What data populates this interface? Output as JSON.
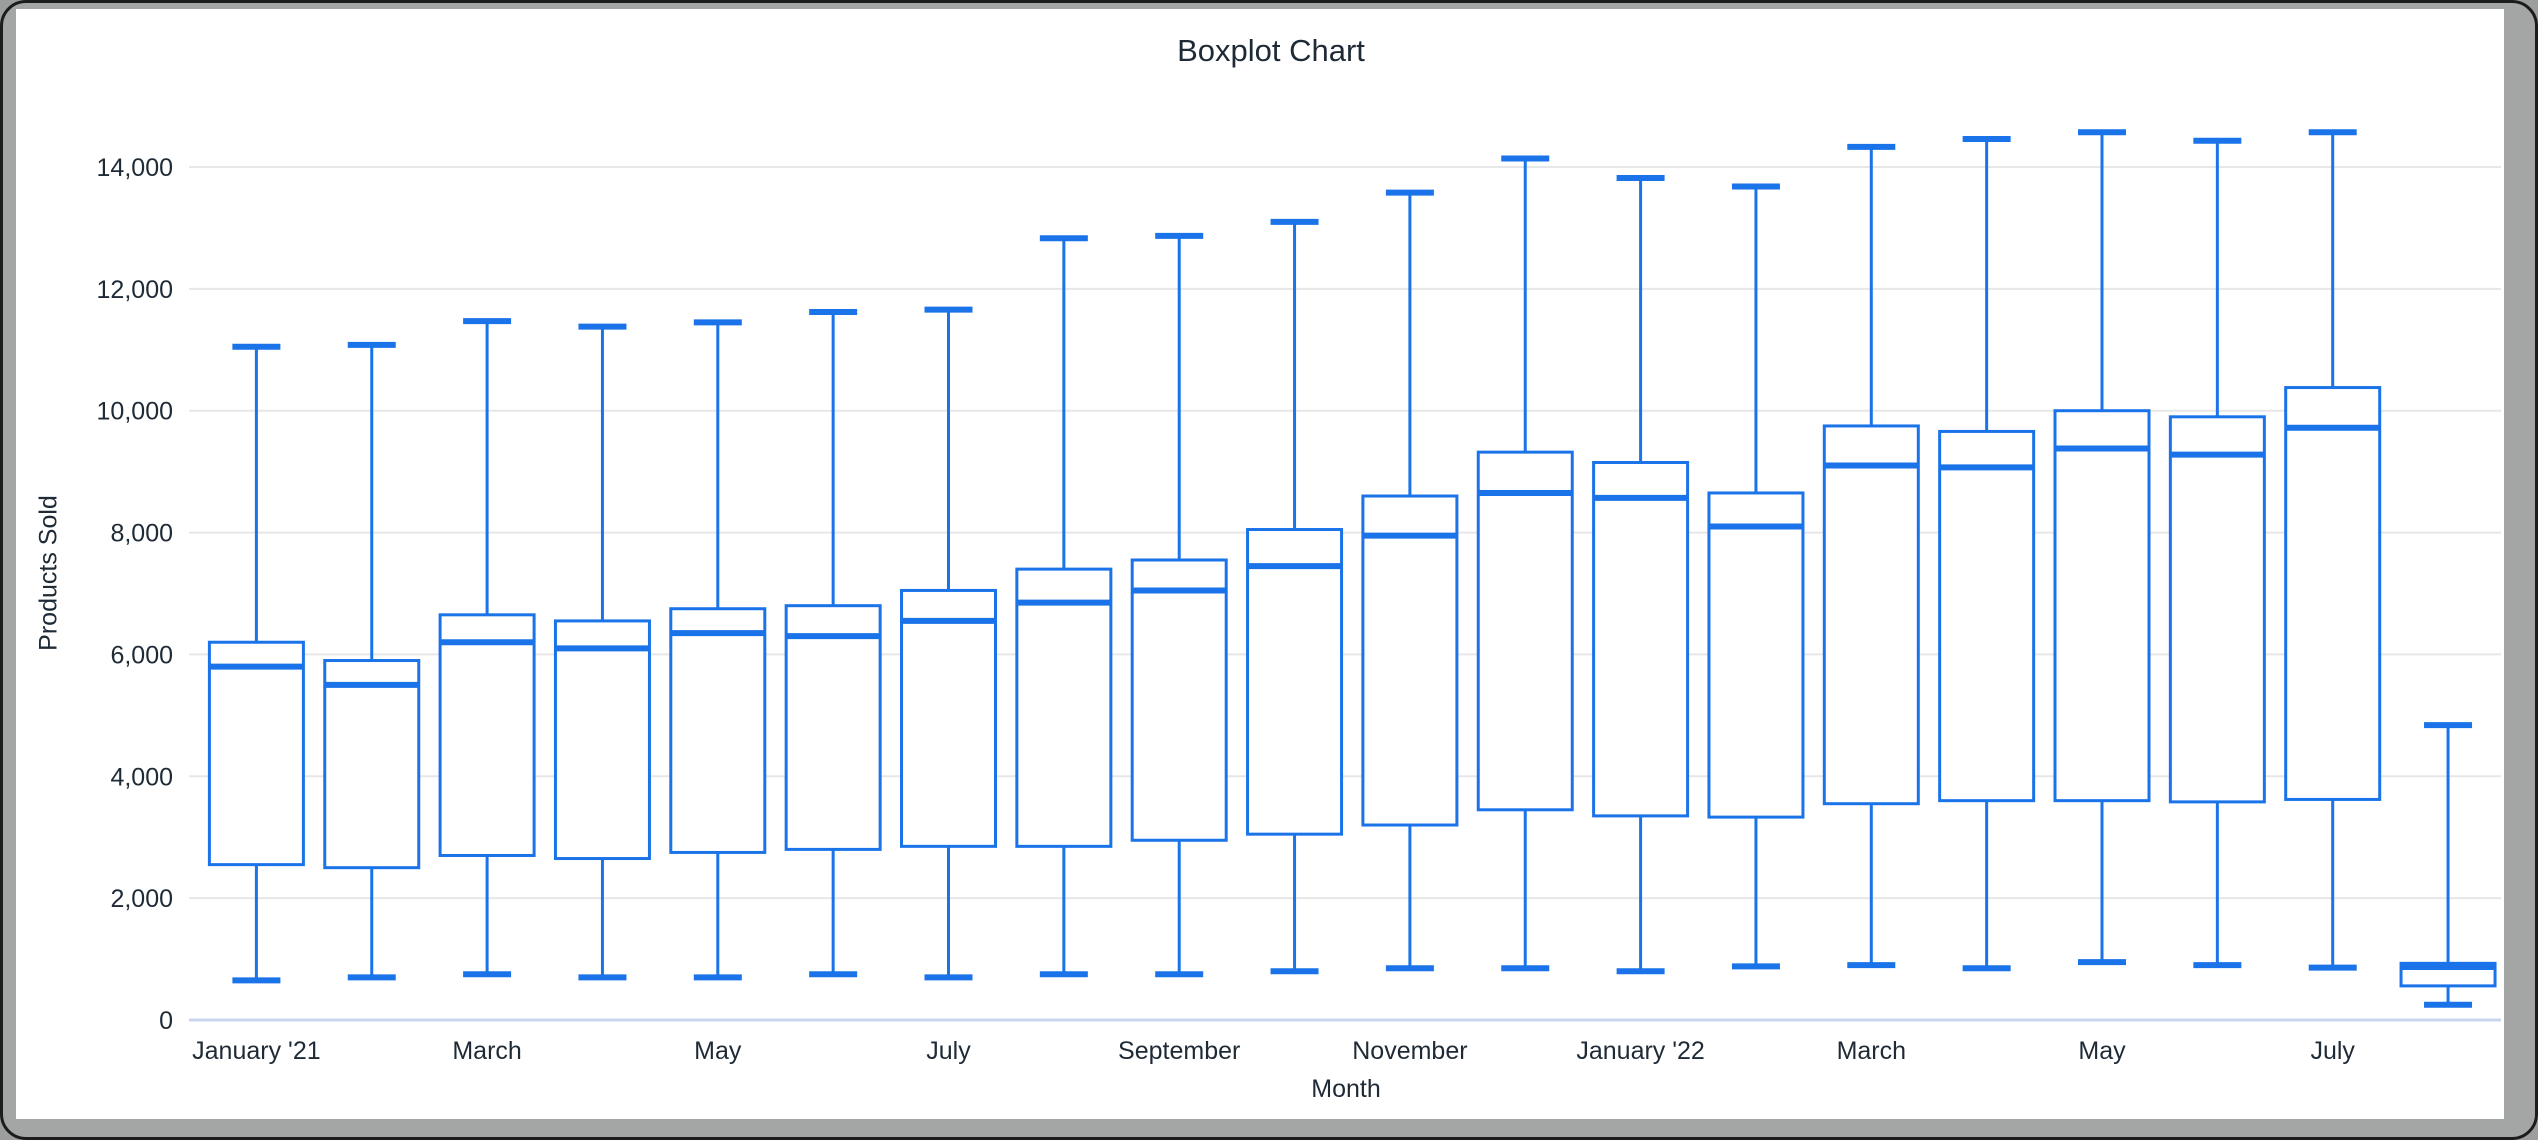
{
  "window": {
    "frame_color": "#a3a6a5",
    "border_color": "#1c1c1c",
    "canvas_color": "#ffffff"
  },
  "chart": {
    "title": "Boxplot Chart",
    "x_axis_title": "Month",
    "y_axis_title": "Products Sold",
    "accent_color": "#1a73e8",
    "gridline_color": "#e7e7e7",
    "baseline_color": "#c9d5ec",
    "text_color": "#1e2a36",
    "y_ticks": [
      "0",
      "2,000",
      "4,000",
      "6,000",
      "8,000",
      "10,000",
      "12,000",
      "14,000"
    ]
  },
  "chart_data": {
    "type": "boxplot",
    "title": "Boxplot Chart",
    "xlabel": "Month",
    "ylabel": "Products Sold",
    "ylim": [
      0,
      15400
    ],
    "y_tick_interval": 2000,
    "grid": true,
    "legend": "none",
    "x_tick_labels": [
      "January '21",
      "March",
      "May",
      "July",
      "September",
      "November",
      "January '22",
      "March",
      "May",
      "July"
    ],
    "series": [
      {
        "name": "Products Sold",
        "boxes": [
          {
            "label": "January '21",
            "min": 650,
            "q1": 2550,
            "median": 5800,
            "q3": 6200,
            "max": 11050
          },
          {
            "label": "",
            "min": 700,
            "q1": 2500,
            "median": 5500,
            "q3": 5900,
            "max": 11080
          },
          {
            "label": "March",
            "min": 750,
            "q1": 2700,
            "median": 6200,
            "q3": 6650,
            "max": 11470
          },
          {
            "label": "",
            "min": 700,
            "q1": 2650,
            "median": 6100,
            "q3": 6550,
            "max": 11380
          },
          {
            "label": "May",
            "min": 700,
            "q1": 2750,
            "median": 6350,
            "q3": 6750,
            "max": 11450
          },
          {
            "label": "",
            "min": 750,
            "q1": 2800,
            "median": 6300,
            "q3": 6800,
            "max": 11620
          },
          {
            "label": "July",
            "min": 700,
            "q1": 2850,
            "median": 6550,
            "q3": 7050,
            "max": 11660
          },
          {
            "label": "",
            "min": 750,
            "q1": 2850,
            "median": 6850,
            "q3": 7400,
            "max": 12830
          },
          {
            "label": "September",
            "min": 750,
            "q1": 2950,
            "median": 7050,
            "q3": 7550,
            "max": 12870
          },
          {
            "label": "",
            "min": 800,
            "q1": 3050,
            "median": 7450,
            "q3": 8050,
            "max": 13100
          },
          {
            "label": "November",
            "min": 850,
            "q1": 3200,
            "median": 7950,
            "q3": 8600,
            "max": 13580
          },
          {
            "label": "",
            "min": 850,
            "q1": 3450,
            "median": 8650,
            "q3": 9320,
            "max": 14140
          },
          {
            "label": "January '22",
            "min": 800,
            "q1": 3350,
            "median": 8570,
            "q3": 9150,
            "max": 13820
          },
          {
            "label": "",
            "min": 880,
            "q1": 3330,
            "median": 8100,
            "q3": 8650,
            "max": 13680
          },
          {
            "label": "March",
            "min": 900,
            "q1": 3550,
            "median": 9100,
            "q3": 9750,
            "max": 14330
          },
          {
            "label": "",
            "min": 850,
            "q1": 3600,
            "median": 9070,
            "q3": 9660,
            "max": 14460
          },
          {
            "label": "May",
            "min": 950,
            "q1": 3600,
            "median": 9380,
            "q3": 10000,
            "max": 14570
          },
          {
            "label": "",
            "min": 900,
            "q1": 3580,
            "median": 9280,
            "q3": 9900,
            "max": 14430
          },
          {
            "label": "July",
            "min": 860,
            "q1": 3620,
            "median": 9720,
            "q3": 10380,
            "max": 14570
          },
          {
            "label": "",
            "min": 250,
            "q1": 560,
            "median": 870,
            "q3": 930,
            "max": 4840
          }
        ]
      }
    ]
  }
}
